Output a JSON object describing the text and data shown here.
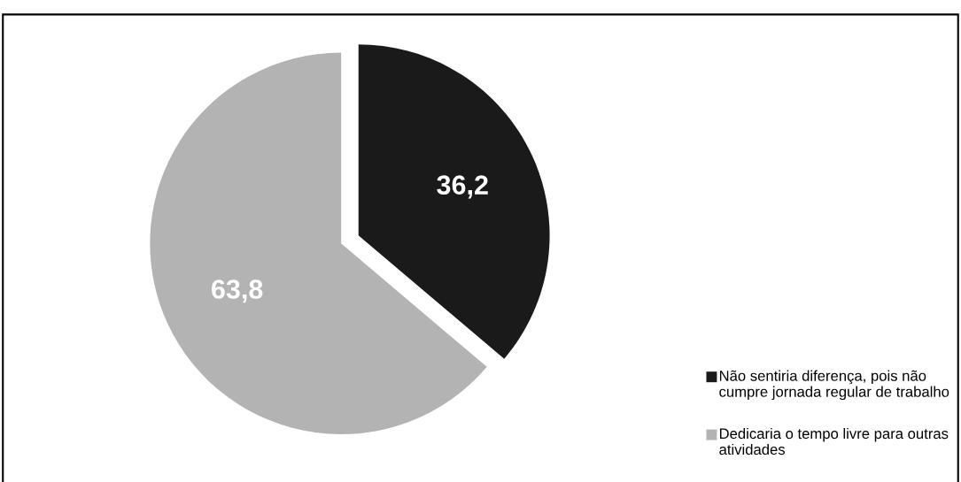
{
  "chart_data": {
    "type": "pie",
    "categories": [
      "Não sentiria diferença, pois não cumpre jornada regular de trabalho",
      "Dedicaria o tempo livre para outras atividades"
    ],
    "values": [
      36.2,
      63.8
    ],
    "colors": [
      "#1a1a1a",
      "#b3b3b3"
    ],
    "value_labels": [
      "36,2",
      "63,8"
    ],
    "legend": "bottom right"
  }
}
